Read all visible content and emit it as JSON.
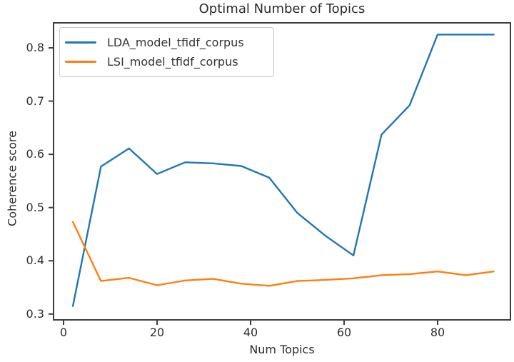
{
  "chart_data": {
    "type": "line",
    "title": "Optimal Number of Topics",
    "xlabel": "Num Topics",
    "ylabel": "Coherence score",
    "x": [
      2,
      8,
      14,
      20,
      26,
      32,
      38,
      44,
      50,
      56,
      62,
      68,
      74,
      80,
      86,
      92
    ],
    "series": [
      {
        "name": "LDA_model_tfidf_corpus",
        "color": "#1f77b4",
        "values": [
          0.315,
          0.577,
          0.611,
          0.563,
          0.585,
          0.583,
          0.578,
          0.556,
          0.49,
          0.447,
          0.41,
          0.637,
          0.692,
          0.825,
          0.825,
          0.825
        ]
      },
      {
        "name": "LSI_model_tfidf_corpus",
        "color": "#ff7f0e",
        "values": [
          0.473,
          0.362,
          0.368,
          0.354,
          0.363,
          0.366,
          0.357,
          0.353,
          0.362,
          0.364,
          0.367,
          0.373,
          0.375,
          0.38,
          0.373,
          0.38
        ]
      }
    ],
    "xticks": [
      0,
      20,
      40,
      60,
      80
    ],
    "yticks": [
      0.3,
      0.4,
      0.5,
      0.6,
      0.7,
      0.8
    ],
    "xlim": [
      -2.14,
      95.57
    ],
    "ylim": [
      0.289,
      0.847
    ],
    "grid": false,
    "legend_position": "upper left",
    "spine_color": "#3d3d3d",
    "text_color": "#2d2d2d"
  }
}
